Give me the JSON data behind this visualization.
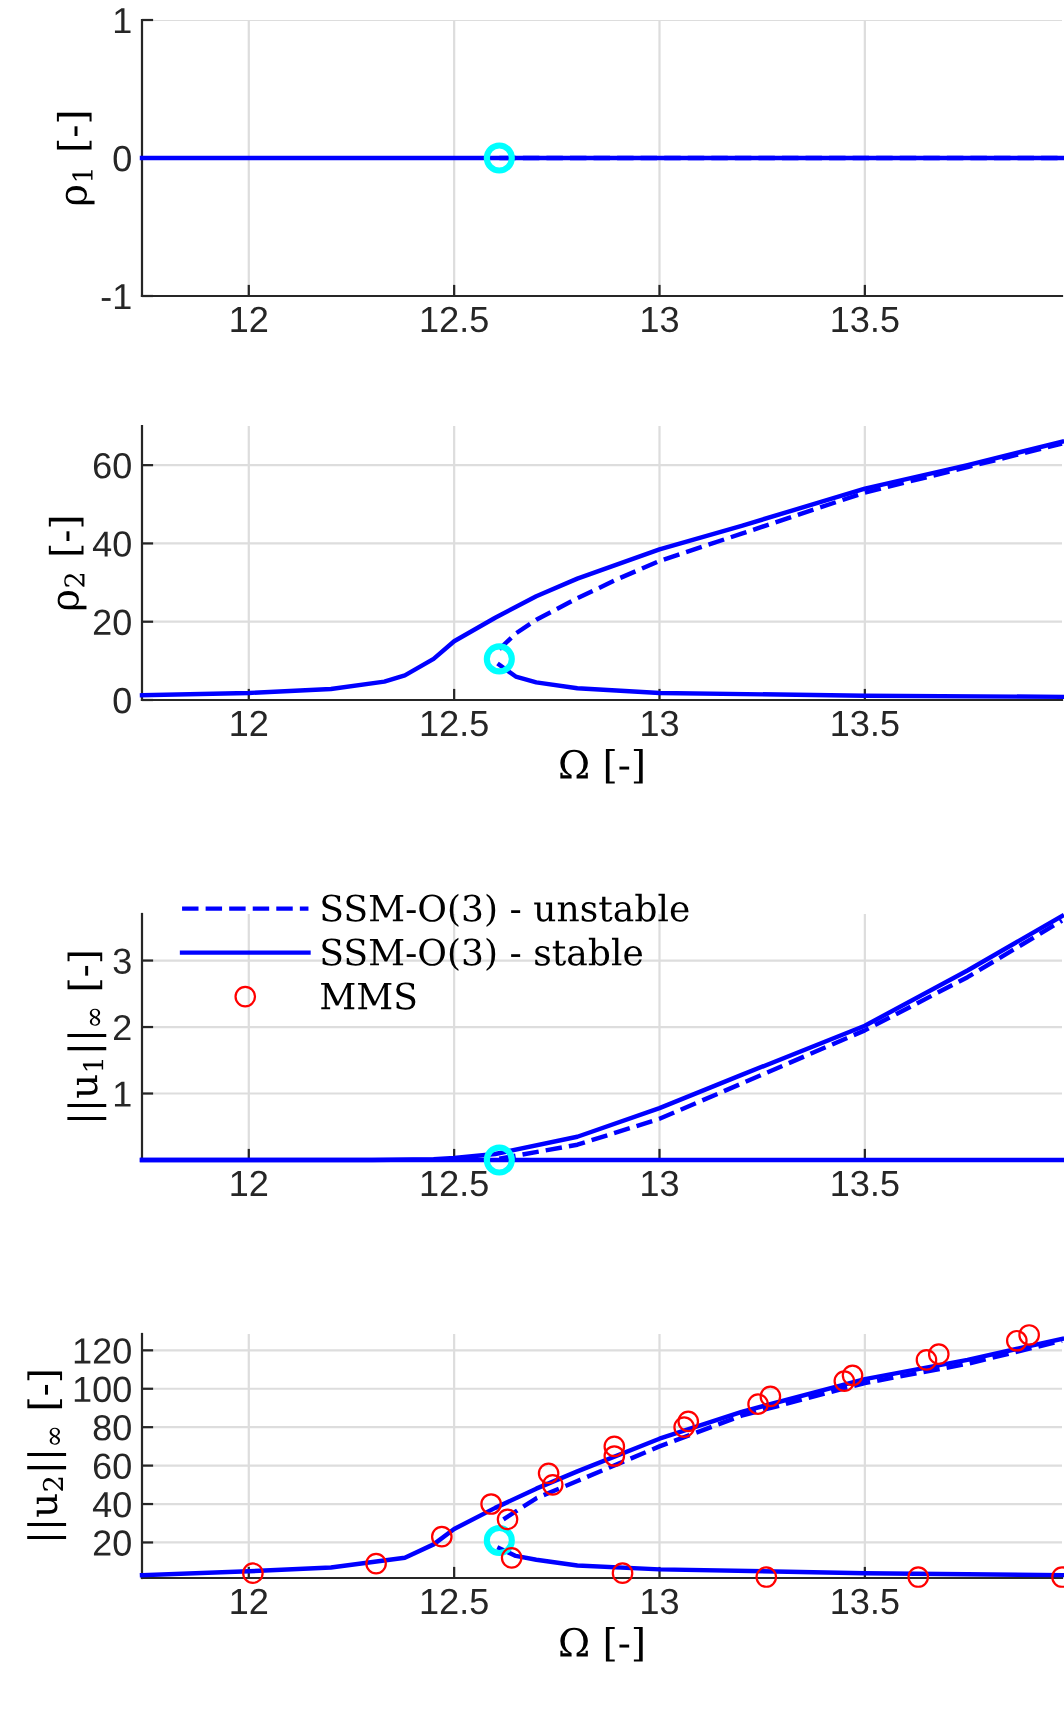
{
  "chart_data": [
    {
      "type": "line",
      "ylabel": "ρ$_{1}$ [-]",
      "xlim": [
        11.74,
        13.98
      ],
      "xticks": [
        12,
        12.5,
        13,
        13.5
      ],
      "ylim": [
        -1,
        1
      ],
      "yticks": [
        -1,
        0,
        1
      ],
      "grid": true,
      "legend": false,
      "series": [
        {
          "color": "#0000ff",
          "line_style": "solid",
          "x": [
            11.74,
            13.98
          ],
          "values": [
            0,
            0
          ]
        },
        {
          "color": "#0000ff",
          "line_style": "dashed",
          "x": [
            12.61,
            13.98
          ],
          "values": [
            0,
            0
          ]
        },
        {
          "type": "scatter",
          "marker": "circle",
          "color": "#00ffff",
          "x": [
            12.61
          ],
          "values": [
            0
          ]
        }
      ]
    },
    {
      "type": "line",
      "ylabel": "ρ$_{2}$ [-]",
      "xlabel": "Ω [-]",
      "xlim": [
        11.74,
        13.98
      ],
      "xticks": [
        12,
        12.5,
        13,
        13.5
      ],
      "ylim": [
        0,
        70
      ],
      "yticks": [
        0,
        20,
        40,
        60
      ],
      "grid": true,
      "legend": false,
      "series": [
        {
          "color": "#0000ff",
          "line_style": "solid",
          "x": [
            11.74,
            12.0,
            12.2,
            12.33,
            12.38,
            12.45,
            12.5,
            12.6,
            12.7,
            12.8,
            13.0,
            13.2,
            13.5,
            13.75,
            13.98
          ],
          "values": [
            1.2,
            1.8,
            2.8,
            4.7,
            6.3,
            10.5,
            15,
            21,
            26.5,
            31,
            38.5,
            44.5,
            54,
            60,
            66
          ]
        },
        {
          "color": "#0000ff",
          "line_style": "dashed",
          "x": [
            12.61,
            12.65,
            12.7,
            12.8,
            12.9,
            13.0,
            13.2,
            13.5,
            13.75,
            13.98
          ],
          "values": [
            13,
            17,
            20.5,
            26,
            31,
            35.5,
            42.5,
            53,
            59.5,
            65.5
          ]
        },
        {
          "color": "#0000ff",
          "line_style": "solid",
          "x": [
            12.61,
            12.65,
            12.7,
            12.8,
            13.0,
            13.5,
            13.98
          ],
          "values": [
            9,
            6,
            4.5,
            3,
            1.8,
            1.1,
            0.8
          ]
        },
        {
          "type": "scatter",
          "marker": "circle",
          "color": "#00ffff",
          "x": [
            12.61
          ],
          "values": [
            10.5
          ]
        }
      ]
    },
    {
      "type": "line",
      "ylabel": "||u$_{1}$||$_{∞}$ [-]",
      "xlim": [
        11.74,
        13.98
      ],
      "xticks": [
        12,
        12.5,
        13,
        13.5
      ],
      "ylim": [
        0,
        3.7
      ],
      "yticks": [
        1,
        2,
        3
      ],
      "grid": true,
      "legend": "top left",
      "series": [
        {
          "name": "SSM-O(3) - unstable",
          "color": "#0000ff",
          "line_style": "dashed",
          "x": [
            12.61,
            12.8,
            13.0,
            13.2,
            13.5,
            13.75,
            13.98
          ],
          "values": [
            0.02,
            0.23,
            0.62,
            1.15,
            1.95,
            2.75,
            3.6
          ]
        },
        {
          "name": "SSM-O(3) - stable",
          "color": "#0000ff",
          "line_style": "solid",
          "x": [
            11.74,
            12.3,
            12.45,
            12.5,
            12.6,
            12.8,
            13.0,
            13.2,
            13.5,
            13.75,
            13.98
          ],
          "values": [
            0,
            0,
            0.01,
            0.03,
            0.09,
            0.35,
            0.78,
            1.28,
            2.02,
            2.85,
            3.67
          ]
        },
        {
          "color": "#0000ff",
          "line_style": "solid",
          "x": [
            11.74,
            13.98
          ],
          "values": [
            0,
            0
          ]
        },
        {
          "type": "scatter",
          "marker": "circle",
          "color": "#00ffff",
          "x": [
            12.61
          ],
          "values": [
            0
          ]
        }
      ]
    },
    {
      "type": "line",
      "ylabel": "||u$_{2}$||$_{∞}$ [-]",
      "xlabel": "Ω [-]",
      "xlim": [
        11.74,
        13.98
      ],
      "xticks": [
        12,
        12.5,
        13,
        13.5
      ],
      "ylim": [
        1.5,
        128.5
      ],
      "yticks": [
        20,
        40,
        60,
        80,
        100,
        120
      ],
      "grid": true,
      "series": [
        {
          "color": "#0000ff",
          "line_style": "solid",
          "x": [
            11.74,
            12.0,
            12.2,
            12.38,
            12.45,
            12.5,
            12.6,
            12.7,
            12.8,
            13.0,
            13.2,
            13.5,
            13.75,
            13.98
          ],
          "values": [
            3,
            5,
            7,
            12,
            19,
            27,
            38,
            48,
            57,
            74,
            88,
            105,
            115,
            126
          ]
        },
        {
          "color": "#0000ff",
          "line_style": "dashed",
          "x": [
            12.62,
            12.7,
            12.8,
            13.0,
            13.2,
            13.5,
            13.75,
            13.98
          ],
          "values": [
            32,
            43,
            52,
            70,
            86,
            103,
            113,
            125
          ]
        },
        {
          "color": "#0000ff",
          "line_style": "solid",
          "x": [
            12.61,
            12.65,
            12.7,
            12.8,
            13.0,
            13.5,
            13.98
          ],
          "values": [
            17,
            13,
            11,
            8,
            6,
            4,
            3
          ]
        },
        {
          "type": "scatter",
          "marker": "circle",
          "color": "#00ffff",
          "x": [
            12.61
          ],
          "values": [
            21
          ]
        },
        {
          "name": "MMS",
          "type": "scatter",
          "marker": "circle",
          "color": "#ff0000",
          "x": [
            12.01,
            12.31,
            12.47,
            12.59,
            12.63,
            12.64,
            12.73,
            12.74,
            12.89,
            12.89,
            12.91,
            13.06,
            13.07,
            13.24,
            13.27,
            13.26,
            13.45,
            13.47,
            13.63,
            13.65,
            13.68,
            13.87,
            13.9,
            13.98
          ],
          "values": [
            4,
            9,
            23,
            40,
            32,
            12,
            56,
            50,
            70,
            65,
            4,
            80,
            83,
            92,
            96,
            2,
            104,
            107,
            2,
            115,
            118,
            125,
            128,
            2
          ]
        }
      ]
    }
  ]
}
